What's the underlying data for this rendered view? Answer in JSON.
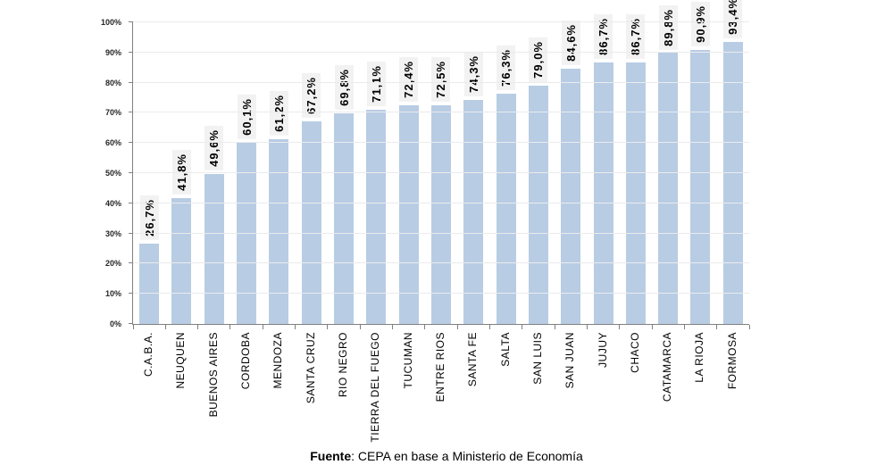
{
  "chart_data": {
    "type": "bar",
    "title": "",
    "xlabel": "",
    "ylabel": "",
    "ylim": [
      0,
      100
    ],
    "grid": true,
    "legend": "none",
    "bar_color": "#B8CCE4",
    "value_label_bg": "#F2F2F2",
    "categories": [
      "C.A.B.A.",
      "NEUQUEN",
      "BUENOS AIRES",
      "CORDOBA",
      "MENDOZA",
      "SANTA CRUZ",
      "RIO NEGRO",
      "TIERRA DEL FUEGO",
      "TUCUMAN",
      "ENTRE RIOS",
      "SANTA FE",
      "SALTA",
      "SAN LUIS",
      "SAN JUAN",
      "JUJUY",
      "CHACO",
      "CATAMARCA",
      "LA RIOJA",
      "FORMOSA"
    ],
    "values": [
      26.7,
      41.8,
      49.6,
      60.1,
      61.2,
      67.2,
      69.8,
      71.1,
      72.4,
      72.5,
      74.3,
      76.3,
      79.0,
      84.6,
      86.7,
      86.7,
      89.8,
      90.9,
      93.4
    ],
    "value_labels": [
      "26,7%",
      "41,8%",
      "49,6%",
      "60,1%",
      "61,2%",
      "67,2%",
      "69,8%",
      "71,1%",
      "72,4%",
      "72,5%",
      "74,3%",
      "76,3%",
      "79,0%",
      "84,6%",
      "86,7%",
      "86,7%",
      "89,8%",
      "90,9%",
      "93,4%"
    ],
    "y_ticks": [
      "0%",
      "10%",
      "20%",
      "30%",
      "40%",
      "50%",
      "60%",
      "70%",
      "80%",
      "90%",
      "100%"
    ]
  },
  "footer": {
    "source_label": "Fuente",
    "source_text": ": CEPA en base a Ministerio de Economía"
  }
}
